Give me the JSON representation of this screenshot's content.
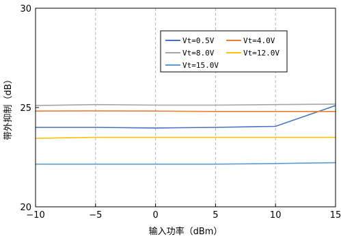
{
  "chart_data": {
    "type": "line",
    "title": "",
    "xlabel": "输入功率（dBm）",
    "ylabel": "带外抑制（dB）",
    "xlim": [
      -10,
      15
    ],
    "ylim": [
      20,
      30
    ],
    "xticks": [
      -10,
      -5,
      0,
      5,
      10,
      15
    ],
    "yticks": [
      20,
      25,
      30
    ],
    "xtick_labels": [
      "−10",
      "−5",
      "0",
      "5",
      "10",
      "15"
    ],
    "ytick_labels": [
      "20",
      "25",
      "30"
    ],
    "x_grid": true,
    "y_grid": false,
    "legend_position": "top-right",
    "x": [
      -10,
      -5,
      0,
      5,
      10,
      15
    ],
    "series": [
      {
        "name": "Vt=0.5V",
        "color": "#4472C4",
        "values": [
          24.0,
          24.0,
          23.97,
          24.0,
          24.05,
          25.1
        ]
      },
      {
        "name": "Vt=4.0V",
        "color": "#ED7D31",
        "values": [
          24.82,
          24.83,
          24.82,
          24.8,
          24.8,
          24.8
        ]
      },
      {
        "name": "Vt=8.0V",
        "color": "#A5A5A5",
        "values": [
          25.1,
          25.15,
          25.12,
          25.12,
          25.15,
          25.17
        ]
      },
      {
        "name": "Vt=12.0V",
        "color": "#FFC000",
        "values": [
          23.45,
          23.5,
          23.5,
          23.5,
          23.5,
          23.5
        ]
      },
      {
        "name": "Vt=15.0V",
        "color": "#5B9BD5",
        "values": [
          22.15,
          22.15,
          22.15,
          22.15,
          22.18,
          22.22
        ]
      }
    ]
  }
}
